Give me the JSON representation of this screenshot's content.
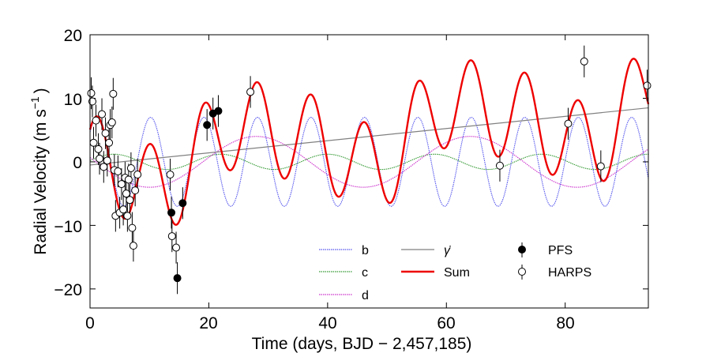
{
  "chart_data": {
    "type": "scatter",
    "xlabel": "Time (days, BJD − 2,457,185)",
    "ylabel_main": "Radial Velocity (m s",
    "ylabel_exp": "−1",
    "ylabel_close": ")",
    "xlim": [
      0,
      94
    ],
    "ylim": [
      -23,
      20
    ],
    "xticks": [
      0,
      20,
      40,
      60,
      80
    ],
    "xtick_labels": [
      "0",
      "20",
      "40",
      "60",
      "80"
    ],
    "yticks": [
      20,
      10,
      0,
      -10,
      -20
    ],
    "ytick_labels": [
      "20",
      "10",
      "0",
      "−10",
      "−20"
    ],
    "legend": {
      "b": "b",
      "c": "c",
      "d": "d",
      "gamma_dot": "γ̇",
      "sum": "Sum",
      "pfs": "PFS",
      "harps": "HARPS"
    },
    "models": {
      "b": {
        "amplitude": 7.0,
        "period": 9.0,
        "tpeak": 10.2,
        "color": "#5555ee"
      },
      "c": {
        "amplitude": 1.2,
        "period": 18.0,
        "tpeak": 4.0,
        "color": "#339933"
      },
      "d": {
        "amplitude": 4.0,
        "period": 36.0,
        "tpeak": 28.0,
        "color": "#cc33cc"
      },
      "trend": {
        "start": [
          0,
          -0.5
        ],
        "end": [
          94,
          8.5
        ],
        "color": "#808080"
      },
      "sum_color": "#ee0000"
    },
    "series": [
      {
        "name": "PFS",
        "marker": "filled",
        "points": [
          {
            "x": 13.7,
            "y": -8.0,
            "err": 2.5
          },
          {
            "x": 14.7,
            "y": -18.3,
            "err": 2.5
          },
          {
            "x": 15.6,
            "y": -6.5,
            "err": 2.5
          },
          {
            "x": 19.7,
            "y": 5.8,
            "err": 2.5
          },
          {
            "x": 20.7,
            "y": 7.6,
            "err": 2.5
          },
          {
            "x": 21.6,
            "y": 8.0,
            "err": 2.5
          }
        ]
      },
      {
        "name": "HARPS",
        "marker": "open",
        "points": [
          {
            "x": 0.2,
            "y": 10.8,
            "err": 2.5
          },
          {
            "x": 0.4,
            "y": 9.5,
            "err": 2.5
          },
          {
            "x": 0.6,
            "y": 3.0,
            "err": 2.5
          },
          {
            "x": 1.0,
            "y": 6.5,
            "err": 2.5
          },
          {
            "x": 1.4,
            "y": 2.0,
            "err": 2.5
          },
          {
            "x": 1.6,
            "y": 0.5,
            "err": 2.5
          },
          {
            "x": 2.0,
            "y": 7.5,
            "err": 2.5
          },
          {
            "x": 2.3,
            "y": -0.8,
            "err": 2.5
          },
          {
            "x": 2.6,
            "y": 4.5,
            "err": 2.5
          },
          {
            "x": 2.9,
            "y": 0.2,
            "err": 2.5
          },
          {
            "x": 3.2,
            "y": 3.0,
            "err": 2.5
          },
          {
            "x": 3.4,
            "y": 5.8,
            "err": 2.5
          },
          {
            "x": 3.7,
            "y": 6.2,
            "err": 2.5
          },
          {
            "x": 3.9,
            "y": 10.7,
            "err": 2.5
          },
          {
            "x": 4.1,
            "y": -1.3,
            "err": 2.5
          },
          {
            "x": 4.3,
            "y": -8.5,
            "err": 2.5
          },
          {
            "x": 4.7,
            "y": -1.5,
            "err": 2.5
          },
          {
            "x": 5.0,
            "y": -8.0,
            "err": 2.5
          },
          {
            "x": 5.3,
            "y": -3.5,
            "err": 2.5
          },
          {
            "x": 5.6,
            "y": -7.5,
            "err": 2.5
          },
          {
            "x": 5.9,
            "y": -2.5,
            "err": 2.5
          },
          {
            "x": 6.1,
            "y": -5.0,
            "err": 2.5
          },
          {
            "x": 6.3,
            "y": -8.5,
            "err": 2.5
          },
          {
            "x": 6.5,
            "y": -2.8,
            "err": 2.5
          },
          {
            "x": 6.7,
            "y": -6.0,
            "err": 2.5
          },
          {
            "x": 6.9,
            "y": -1.0,
            "err": 2.5
          },
          {
            "x": 7.1,
            "y": -10.4,
            "err": 2.5
          },
          {
            "x": 7.3,
            "y": -13.2,
            "err": 2.5
          },
          {
            "x": 7.6,
            "y": -4.5,
            "err": 2.5
          },
          {
            "x": 8.0,
            "y": -2.0,
            "err": 2.5
          },
          {
            "x": 13.5,
            "y": -2.0,
            "err": 2.5
          },
          {
            "x": 13.8,
            "y": -11.7,
            "err": 2.5
          },
          {
            "x": 14.5,
            "y": -13.5,
            "err": 2.5
          },
          {
            "x": 27.0,
            "y": 11.0,
            "err": 2.5
          },
          {
            "x": 69.0,
            "y": -0.6,
            "err": 2.5
          },
          {
            "x": 80.5,
            "y": 6.0,
            "err": 2.5
          },
          {
            "x": 83.2,
            "y": 15.8,
            "err": 2.5
          },
          {
            "x": 86.0,
            "y": -0.7,
            "err": 2.5
          },
          {
            "x": 93.8,
            "y": 12.0,
            "err": 2.5
          }
        ]
      }
    ]
  }
}
